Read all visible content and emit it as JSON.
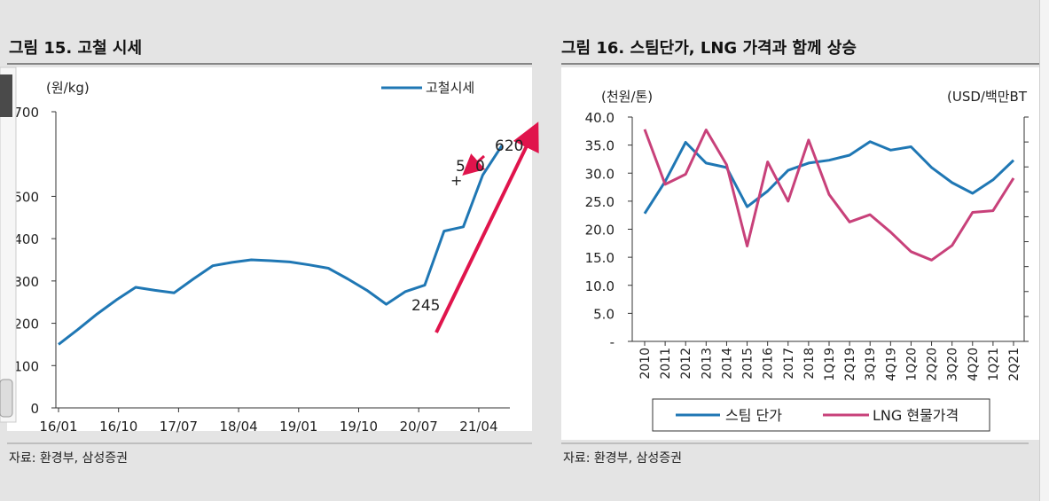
{
  "colors": {
    "page_bg": "#e4e4e4",
    "plot_bg": "#ffffff",
    "series_blue": "#1f77b4",
    "series_pink": "#c8417a",
    "arrow_red": "#e0144c",
    "rule": "#7a7a7a"
  },
  "chart_data": [
    {
      "type": "line",
      "title": "그림 15. 고철 시세",
      "y_unit": "(원/kg)",
      "yticks": [
        "0",
        "100",
        "200",
        "300",
        "400",
        "500",
        "700"
      ],
      "xticks": [
        "16/01",
        "16/10",
        "17/07",
        "18/04",
        "19/01",
        "19/10",
        "20/07",
        "21/04"
      ],
      "ylim": [
        0,
        700
      ],
      "series": [
        {
          "name": "고철시세",
          "color": "#1f77b4",
          "values": [
            150,
            185,
            222,
            255,
            285,
            278,
            272,
            305,
            336,
            344,
            350,
            348,
            345,
            338,
            330,
            305,
            278,
            245,
            275,
            290,
            418,
            428,
            550,
            620
          ]
        }
      ],
      "annotations": [
        "245",
        "620",
        "5",
        "0",
        "+"
      ],
      "source": "자료: 환경부, 삼성증권"
    },
    {
      "type": "line",
      "title": "그림 16. 스팀단가, LNG 가격과 함께 상승",
      "y_unit_left": "(천원/톤)",
      "y_unit_right": "(USD/백만BT",
      "yticks_left": [
        "-",
        "5.0",
        "10.0",
        "15.0",
        "20.0",
        "25.0",
        "30.0",
        "35.0",
        "40.0"
      ],
      "ylim_left": [
        0,
        40
      ],
      "categories": [
        "2010",
        "2011",
        "2012",
        "2013",
        "2014",
        "2015",
        "2016",
        "2017",
        "2018",
        "1Q19",
        "2Q19",
        "3Q19",
        "4Q19",
        "1Q20",
        "2Q20",
        "3Q20",
        "4Q20",
        "1Q21",
        "2Q21"
      ],
      "series": [
        {
          "name": "스팀 단가",
          "color": "#1f77b4",
          "values": [
            22.8,
            28.5,
            35.5,
            31.8,
            31.0,
            24.0,
            26.8,
            30.5,
            31.8,
            32.3,
            33.2,
            35.6,
            34.1,
            34.7,
            31.0,
            28.3,
            26.4,
            28.8,
            32.3
          ]
        },
        {
          "name": "LNG 현물가격",
          "color": "#c8417a",
          "values": [
            37.8,
            28.0,
            29.8,
            37.7,
            31.5,
            17.0,
            32.0,
            25.0,
            35.9,
            26.2,
            21.3,
            22.6,
            19.5,
            16.0,
            14.5,
            17.1,
            23.0,
            23.3,
            29.1
          ]
        }
      ],
      "source": "자료: 환경부, 삼성증권"
    }
  ]
}
